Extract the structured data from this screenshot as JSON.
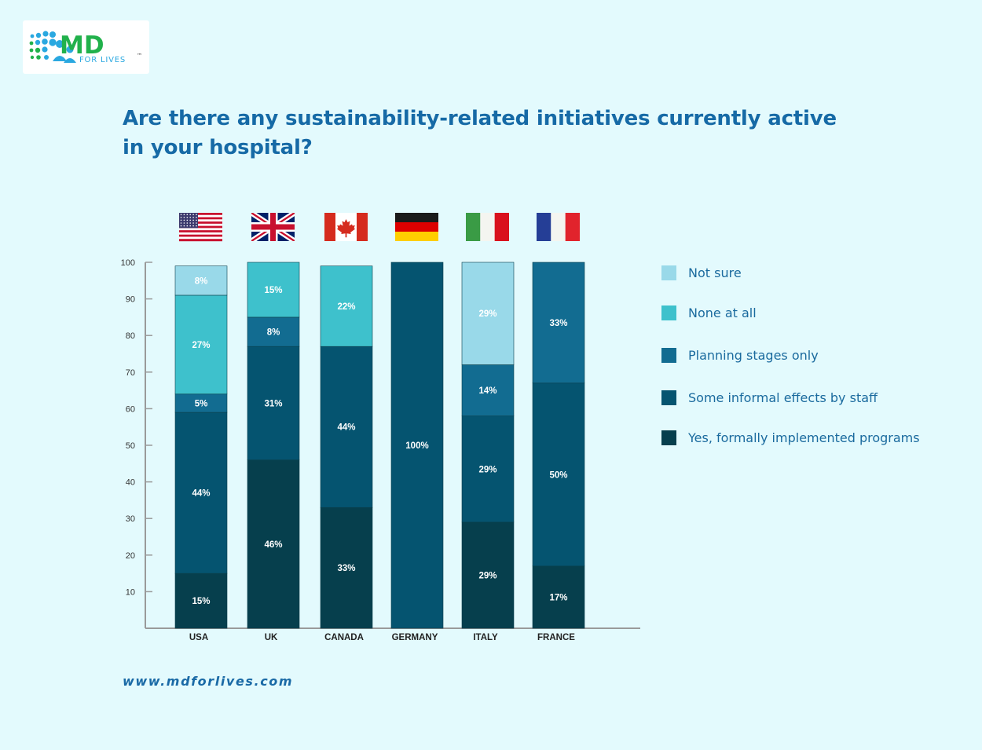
{
  "logo": {
    "text_md": "MD",
    "text_sub": "FOR LIVES",
    "trademark": "™"
  },
  "chart_data": {
    "type": "bar",
    "stacked": true,
    "title": "Are there any sustainability-related initiatives currently active in your hospital?",
    "xlabel": "",
    "ylabel": "",
    "ylim": [
      0,
      100
    ],
    "yticks": [
      10,
      20,
      30,
      40,
      50,
      60,
      70,
      80,
      90,
      100
    ],
    "categories": [
      "USA",
      "UK",
      "CANADA",
      "GERMANY",
      "ITALY",
      "FRANCE"
    ],
    "flags": [
      "usa-flag",
      "uk-flag",
      "canada-flag",
      "germany-flag",
      "italy-flag",
      "france-flag"
    ],
    "legend_position": "right",
    "series": [
      {
        "name": "Yes, formally implemented programs",
        "color": "#063f4d",
        "values": [
          15,
          46,
          33,
          0,
          29,
          17
        ],
        "labels": [
          "15%",
          "46%",
          "33%",
          "",
          "29%",
          "17%"
        ]
      },
      {
        "name": "Some informal effects by staff",
        "color": "#055470",
        "values": [
          44,
          31,
          44,
          100,
          29,
          50
        ],
        "labels": [
          "44%",
          "31%",
          "44%",
          "100%",
          "29%",
          "50%"
        ]
      },
      {
        "name": "Planning stages only",
        "color": "#126c91",
        "values": [
          5,
          8,
          0,
          0,
          14,
          33
        ],
        "labels": [
          "5%",
          "8%",
          "",
          "",
          "14%",
          "33%"
        ]
      },
      {
        "name": "None at all",
        "color": "#3ec1cc",
        "values": [
          27,
          15,
          22,
          0,
          0,
          0
        ],
        "labels": [
          "27%",
          "15%",
          "22%",
          "",
          "",
          ""
        ]
      },
      {
        "name": "Not sure",
        "color": "#99d9e9",
        "values": [
          8,
          0,
          0,
          0,
          29,
          0
        ],
        "labels": [
          "8%",
          "",
          "",
          "",
          "29%",
          ""
        ]
      }
    ]
  },
  "legend": [
    {
      "label": "Not sure",
      "color": "#99d9e9"
    },
    {
      "label": "None at all",
      "color": "#3ec1cc"
    },
    {
      "label": "Planning stages only",
      "color": "#126c91"
    },
    {
      "label": "Some informal effects by staff",
      "color": "#055470"
    },
    {
      "label": "Yes, formally implemented programs",
      "color": "#063f4d"
    }
  ],
  "footer": {
    "url": "www.mdforlives.com"
  }
}
